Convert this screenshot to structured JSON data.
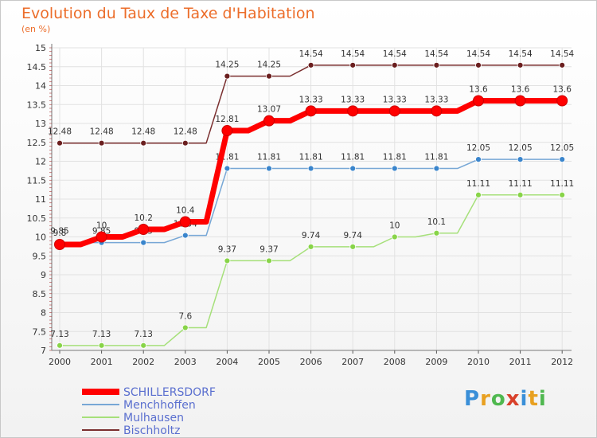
{
  "title": "Evolution du Taux de Taxe d'Habitation",
  "subtitle": "(en %)",
  "logo": [
    "P",
    "r",
    "o",
    "x",
    "i",
    "t",
    "i"
  ],
  "logo_colors": [
    "#3a8fd8",
    "#e8a020",
    "#4fb84f",
    "#d8402a",
    "#3a8fd8",
    "#e8a020",
    "#4fb84f"
  ],
  "chart_data": {
    "type": "line",
    "x": [
      "2000",
      "2001",
      "2002",
      "2003",
      "2004",
      "2005",
      "2006",
      "2007",
      "2008",
      "2009",
      "2010",
      "2011",
      "2012"
    ],
    "ylim": [
      7,
      15
    ],
    "yticks": [
      "7",
      "7.5",
      "8",
      "8.5",
      "9",
      "9.5",
      "10",
      "10.5",
      "11",
      "11.5",
      "12",
      "12.5",
      "13",
      "13.5",
      "14",
      "14.5",
      "15"
    ],
    "grid": true,
    "legend_position": "bottom-left",
    "series": [
      {
        "name": "SCHILLERSDORF",
        "color": "#ff0000",
        "marker": "#ff0000",
        "values": [
          9.8,
          10,
          10.2,
          10.4,
          12.81,
          13.07,
          13.33,
          13.33,
          13.33,
          13.33,
          13.6,
          13.6,
          13.6
        ],
        "labels": [
          "9.8",
          "10",
          "10.2",
          "10.4",
          "12.81",
          "13.07",
          "13.33",
          "13.33",
          "13.33",
          "13.33",
          "13.6",
          "13.6",
          "13.6"
        ]
      },
      {
        "name": "Menchhoffen",
        "color": "#77a7d6",
        "marker": "#3a85cc",
        "values": [
          9.85,
          9.85,
          9.85,
          10.04,
          11.81,
          11.81,
          11.81,
          11.81,
          11.81,
          11.81,
          12.05,
          12.05,
          12.05
        ],
        "labels": [
          "9.85",
          "9.85",
          "9.85",
          "10.04",
          "11.81",
          "11.81",
          "11.81",
          "11.81",
          "11.81",
          "11.81",
          "12.05",
          "12.05",
          "12.05"
        ]
      },
      {
        "name": "Mulhausen",
        "color": "#a6e07a",
        "marker": "#88d448",
        "values": [
          7.13,
          7.13,
          7.13,
          7.6,
          9.37,
          9.37,
          9.74,
          9.74,
          10,
          10.1,
          11.11,
          11.11,
          11.11
        ],
        "labels": [
          "7.13",
          "7.13",
          "7.13",
          "7.6",
          "9.37",
          "9.37",
          "9.74",
          "9.74",
          "10",
          "10.1",
          "11.11",
          "11.11",
          "11.11"
        ]
      },
      {
        "name": "Bischholtz",
        "color": "#7a2f2f",
        "marker": "#6b1f1f",
        "values": [
          12.48,
          12.48,
          12.48,
          12.48,
          14.25,
          14.25,
          14.54,
          14.54,
          14.54,
          14.54,
          14.54,
          14.54,
          14.54
        ],
        "labels": [
          "12.48",
          "12.48",
          "12.48",
          "12.48",
          "14.25",
          "14.25",
          "14.54",
          "14.54",
          "14.54",
          "14.54",
          "14.54",
          "14.54",
          "14.54"
        ]
      }
    ]
  }
}
